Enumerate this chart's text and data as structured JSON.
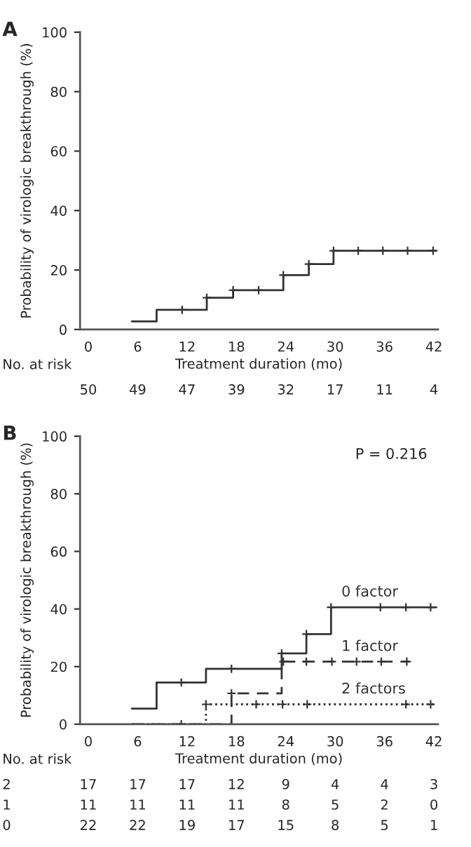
{
  "chart_data": [
    {
      "type": "step",
      "ylabel": "Probability of virologic breakthrough (%)",
      "xlabel": "Treatment duration (mo)",
      "xlim": [
        -1,
        42.5
      ],
      "ylim": [
        0,
        100
      ],
      "xticks": [
        0,
        6,
        12,
        18,
        24,
        30,
        36,
        42
      ],
      "yticks": [
        0,
        20,
        40,
        60,
        80,
        100
      ],
      "grid": false,
      "legend": false,
      "series": [
        {
          "type": "step",
          "color": "#333333",
          "line_style": "solid",
          "x": [
            5.3,
            8.3,
            14.4,
            17.6,
            23.7,
            26.8,
            29.8,
            42.3
          ],
          "values": [
            2.7,
            6.6,
            10.7,
            13.2,
            18.3,
            22.0,
            26.5,
            26.5
          ]
        },
        {
          "type": "scatter",
          "marker": "cross",
          "color": "#333333",
          "x": [
            11.4,
            14.4,
            17.6,
            20.7,
            23.7,
            26.8,
            29.8,
            32.8,
            35.8,
            38.8,
            41.9
          ],
          "values": [
            6.6,
            10.7,
            13.2,
            13.2,
            18.3,
            22.0,
            26.5,
            26.5,
            26.5,
            26.5,
            26.5
          ]
        }
      ],
      "annotations": [
        "A",
        "No. at risk",
        "50",
        "49",
        "47",
        "39",
        "32",
        "17",
        "11",
        "4"
      ]
    },
    {
      "type": "step",
      "ylabel": "Probability of virologic breakthrough (%)",
      "xlabel": "Treatment duration (mo)",
      "xlim": [
        -1,
        42.5
      ],
      "ylim": [
        0,
        100
      ],
      "xticks": [
        0,
        6,
        12,
        18,
        24,
        30,
        36,
        42
      ],
      "yticks": [
        0,
        20,
        40,
        60,
        80,
        100
      ],
      "grid": false,
      "legend": false,
      "series": [
        {
          "type": "step",
          "name": "0 factor",
          "color": "#333333",
          "line_style": "solid",
          "x": [
            5.3,
            8.3,
            14.3,
            23.5,
            26.5,
            29.5,
            42.3
          ],
          "values": [
            5.4,
            14.5,
            19.2,
            24.6,
            31.3,
            40.6,
            40.6
          ]
        },
        {
          "type": "step",
          "name": "1 factor",
          "color": "#333333",
          "line_style": "dashed",
          "x": [
            5.3,
            17.4,
            23.5,
            39.0
          ],
          "values": [
            0,
            10.7,
            21.7,
            21.7
          ]
        },
        {
          "type": "step",
          "name": "2 factors",
          "color": "#333333",
          "line_style": "dotted",
          "x": [
            5.3,
            14.3,
            42.3
          ],
          "values": [
            0,
            6.9,
            6.9
          ]
        },
        {
          "type": "scatter",
          "marker": "cross",
          "color": "#333333",
          "x": [
            11.3,
            17.4,
            23.5,
            26.5,
            29.5,
            35.5,
            38.6,
            41.6
          ],
          "values": [
            14.5,
            19.2,
            24.6,
            31.3,
            40.6,
            40.6,
            40.6,
            40.6
          ]
        },
        {
          "type": "scatter",
          "marker": "cross",
          "color": "#333333",
          "x": [
            11.3,
            17.4,
            23.7,
            26.5,
            29.6,
            32.6,
            35.6,
            38.7
          ],
          "values": [
            0,
            10.7,
            21.7,
            21.7,
            21.7,
            21.7,
            21.7,
            21.7
          ]
        },
        {
          "type": "scatter",
          "marker": "cross",
          "color": "#333333",
          "x": [
            14.3,
            20.4,
            23.6,
            26.6,
            38.6,
            41.6
          ],
          "values": [
            6.9,
            6.9,
            6.9,
            6.9,
            6.9,
            6.9
          ]
        }
      ],
      "annotations": [
        "B",
        "P = 0.216",
        "No. at risk",
        "2",
        "17",
        "17",
        "17",
        "12",
        "9",
        "4",
        "4",
        "3",
        "1",
        "11",
        "11",
        "11",
        "11",
        "8",
        "5",
        "2",
        "0",
        "0",
        "22",
        "22",
        "19",
        "17",
        "15",
        "8",
        "5",
        "1"
      ]
    }
  ]
}
